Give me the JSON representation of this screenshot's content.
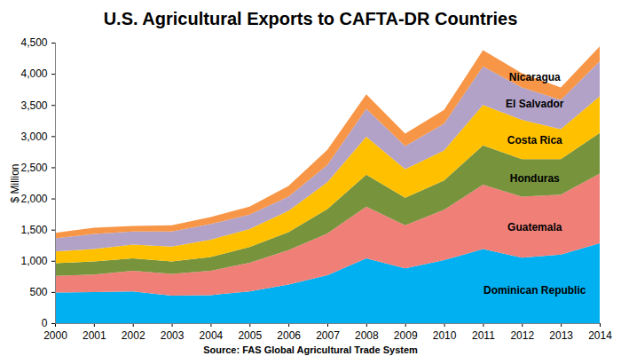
{
  "chart_data": {
    "type": "area",
    "stacked": true,
    "title": "U.S. Agricultural Exports to CAFTA-DR Countries",
    "caption": "Source: FAS Global Agricultural Trade System",
    "y_label": "$ Million",
    "x": [
      2000,
      2001,
      2002,
      2003,
      2004,
      2005,
      2006,
      2007,
      2008,
      2009,
      2010,
      2011,
      2012,
      2013,
      2014
    ],
    "xlim": [
      2000,
      2014
    ],
    "xticks": [
      2000,
      2001,
      2002,
      2003,
      2004,
      2005,
      2006,
      2007,
      2008,
      2009,
      2010,
      2011,
      2012,
      2013,
      2014
    ],
    "ylim": [
      0,
      4500
    ],
    "yticks": [
      0,
      500,
      {
        "value": 1000,
        "label": "1,000"
      },
      {
        "value": 1500,
        "label": "1,500"
      },
      {
        "value": 2000,
        "label": "2,000"
      },
      {
        "value": 2500,
        "label": "2,500"
      },
      {
        "value": 3000,
        "label": "3,000"
      },
      {
        "value": 3500,
        "label": "3,500"
      },
      {
        "value": 4000,
        "label": "4,000"
      },
      {
        "value": 4500,
        "label": "4,500"
      }
    ],
    "grid": false,
    "series": [
      {
        "name": "Dominican Republic",
        "color": "#00B0F0",
        "values": [
          490,
          500,
          510,
          440,
          450,
          510,
          620,
          770,
          1040,
          880,
          1010,
          1190,
          1050,
          1100,
          1280
        ]
      },
      {
        "name": "Guatemala",
        "color": "#F07F78",
        "values": [
          270,
          280,
          330,
          350,
          390,
          460,
          550,
          670,
          830,
          690,
          810,
          1030,
          980,
          960,
          1120
        ]
      },
      {
        "name": "Honduras",
        "color": "#77933C",
        "values": [
          200,
          210,
          200,
          200,
          220,
          250,
          290,
          390,
          510,
          440,
          470,
          630,
          600,
          570,
          650
        ]
      },
      {
        "name": "Costa Rica",
        "color": "#FFC000",
        "values": [
          190,
          200,
          220,
          240,
          280,
          290,
          340,
          430,
          610,
          460,
          480,
          650,
          630,
          480,
          590
        ]
      },
      {
        "name": "El Salvador",
        "color": "#B3A2C7",
        "values": [
          210,
          240,
          210,
          240,
          250,
          230,
          230,
          280,
          450,
          370,
          430,
          620,
          520,
          470,
          560
        ]
      },
      {
        "name": "Nicaragua",
        "color": "#F79646",
        "values": [
          90,
          100,
          90,
          100,
          110,
          130,
          170,
          240,
          230,
          200,
          220,
          260,
          230,
          200,
          240
        ]
      }
    ]
  }
}
